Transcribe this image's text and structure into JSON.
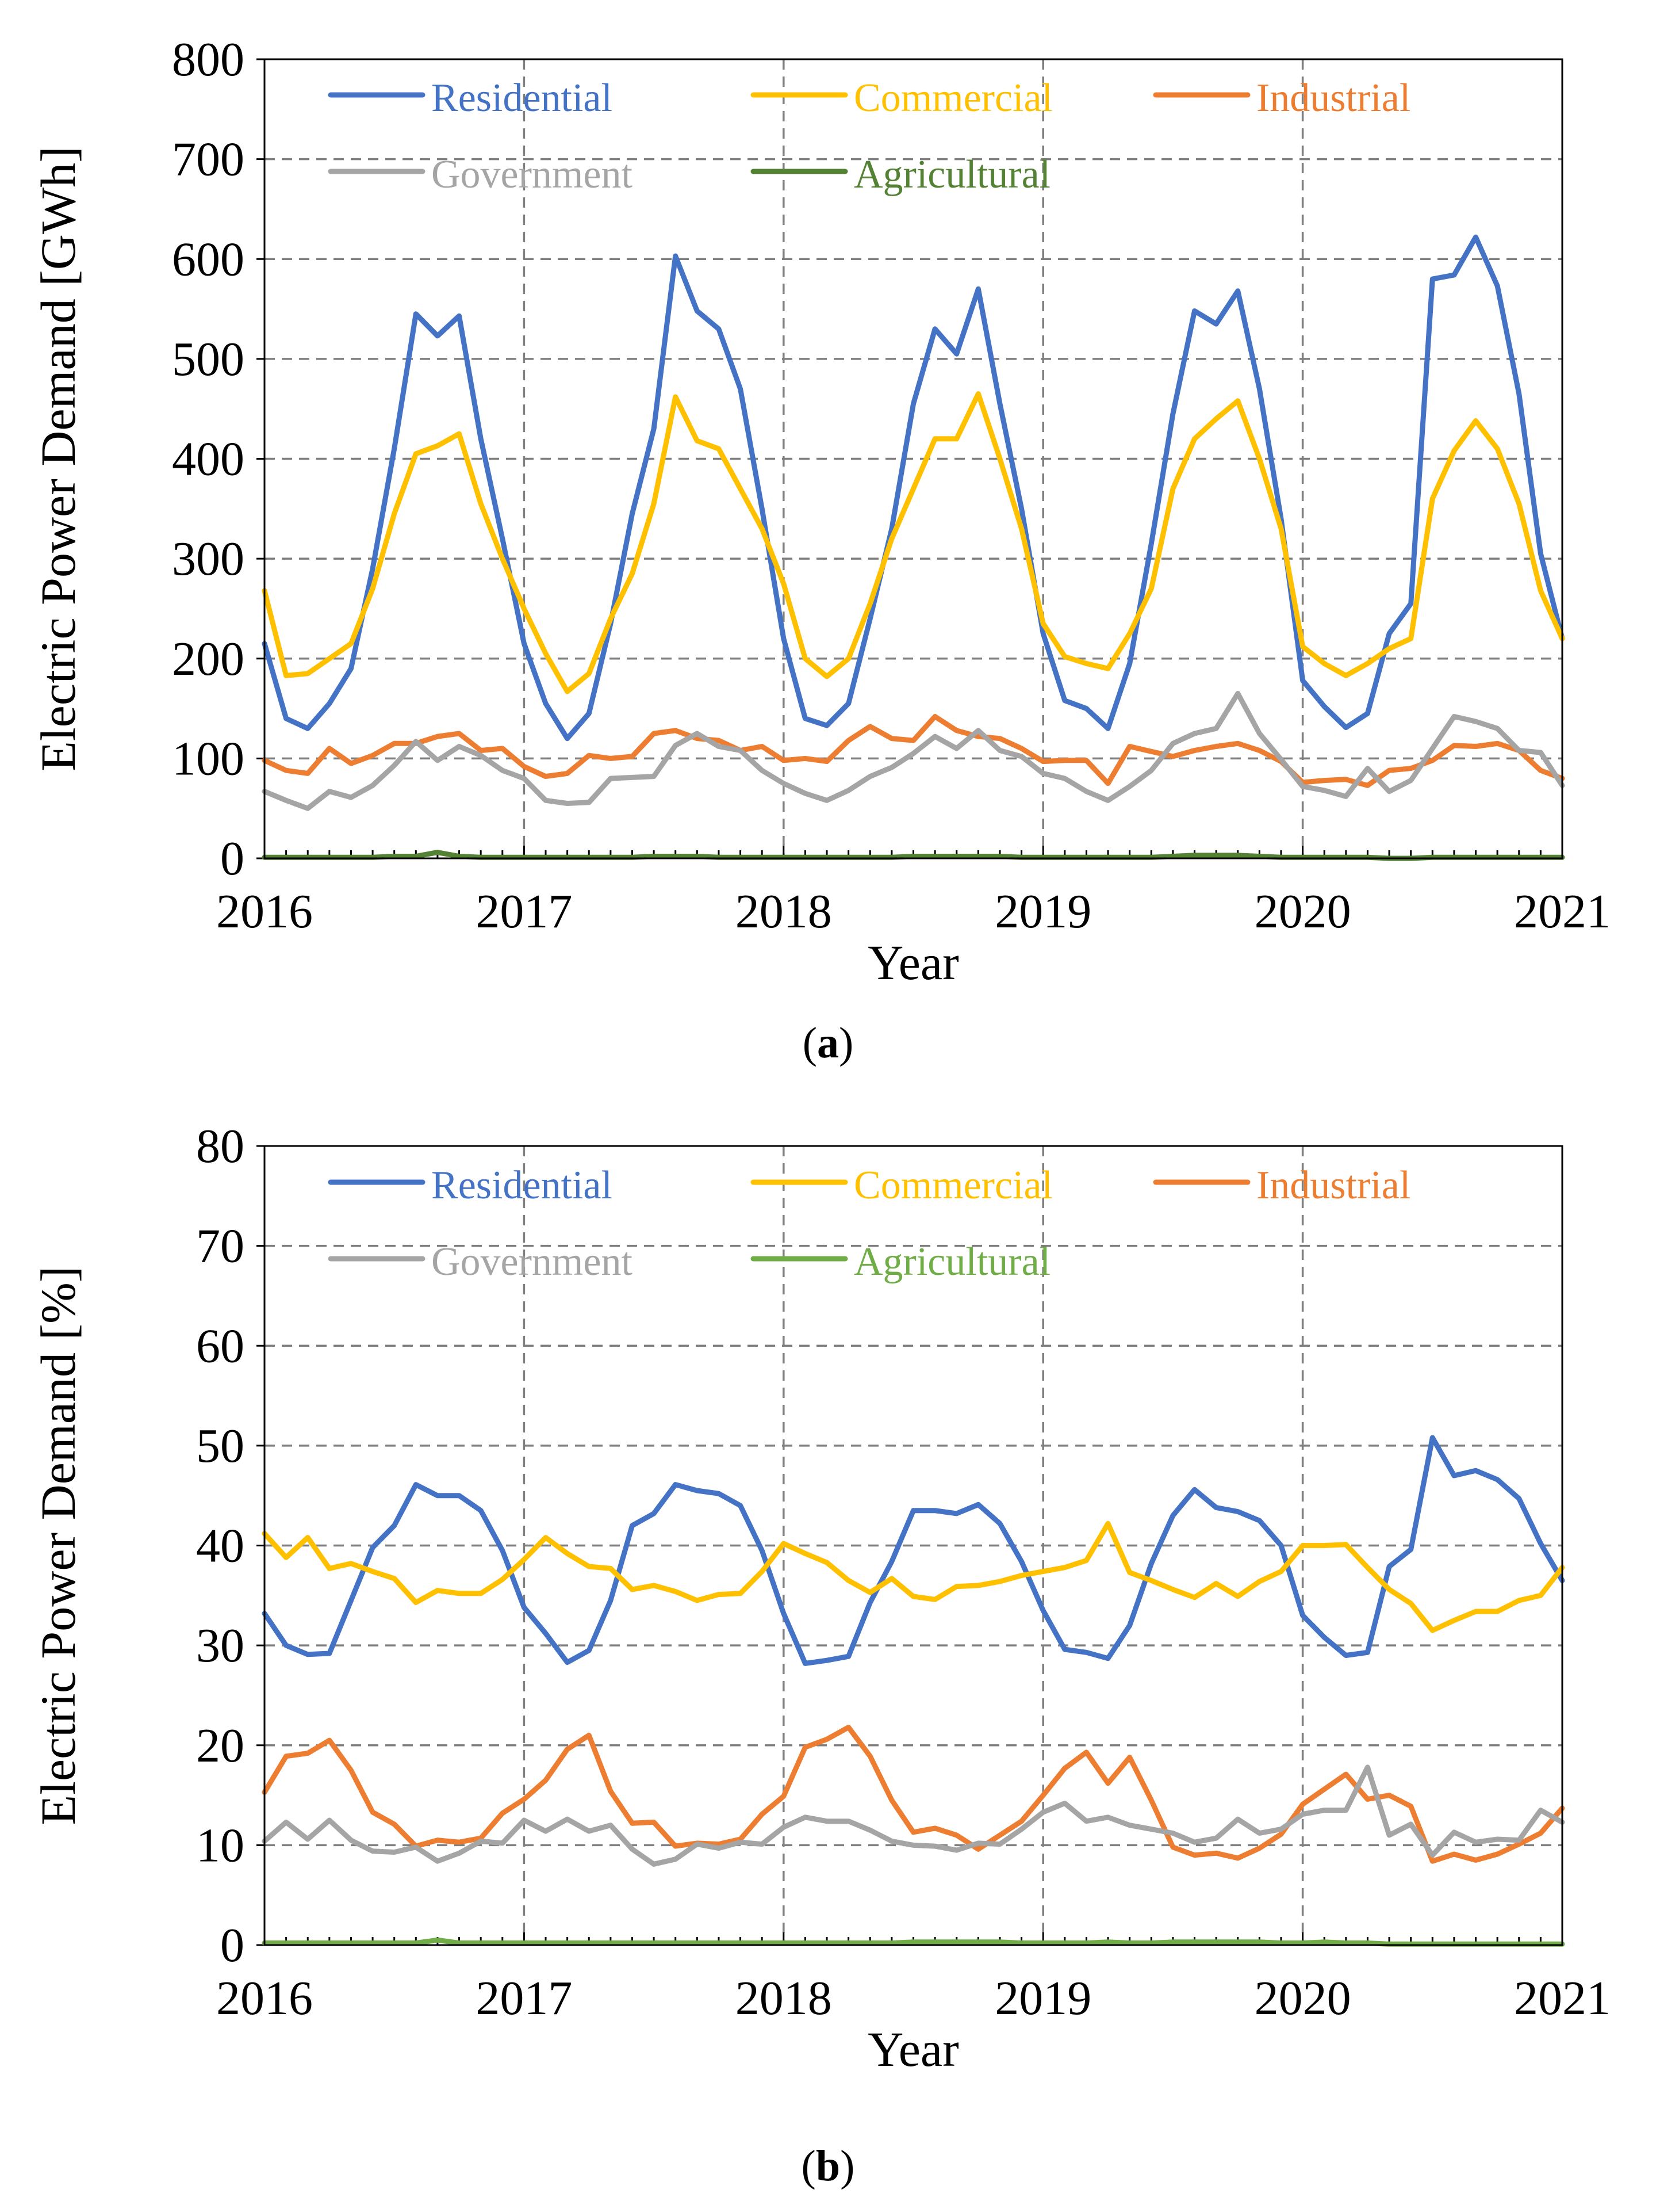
{
  "colors": {
    "residential": "#4472C4",
    "commercial": "#FFC000",
    "industrial": "#ED7D31",
    "government": "#A5A5A5",
    "agricultural_a": "#548235",
    "agricultural_b": "#70AD47",
    "grid": "#7F7F7F",
    "axis": "#000000"
  },
  "chart_data": [
    {
      "type": "line",
      "panel": "(a)",
      "panel_prefix": "(",
      "panel_letter": "a",
      "panel_suffix": ")",
      "xlabel": "Year",
      "ylabel": "Electric Power Demand [GWh]",
      "xlim": [
        2016,
        2021
      ],
      "ylim": [
        0,
        800
      ],
      "yticks": [
        0,
        100,
        200,
        300,
        400,
        500,
        600,
        700,
        800
      ],
      "xticks": [
        2016,
        2017,
        2018,
        2019,
        2020,
        2021
      ],
      "grid": true,
      "legend": [
        "Residential",
        "Commercial",
        "Industrial",
        "Government",
        "Agricultural"
      ],
      "series": [
        {
          "name": "Residential",
          "color_key": "residential",
          "values": [
            215,
            140,
            130,
            155,
            190,
            290,
            410,
            545,
            523,
            543,
            420,
            320,
            215,
            155,
            120,
            145,
            235,
            345,
            430,
            603,
            548,
            530,
            470,
            350,
            220,
            140,
            133,
            155,
            240,
            330,
            455,
            530,
            505,
            570,
            455,
            350,
            225,
            158,
            150,
            130,
            195,
            315,
            445,
            548,
            535,
            568,
            470,
            340,
            178,
            152,
            131,
            145,
            225,
            255,
            580,
            584,
            622,
            573,
            465,
            305,
            220
          ]
        },
        {
          "name": "Commercial",
          "color_key": "commercial",
          "values": [
            268,
            183,
            185,
            200,
            215,
            270,
            345,
            405,
            413,
            425,
            355,
            300,
            250,
            205,
            167,
            185,
            240,
            285,
            355,
            462,
            418,
            410,
            370,
            330,
            275,
            200,
            182,
            200,
            255,
            320,
            370,
            420,
            420,
            465,
            400,
            330,
            235,
            202,
            195,
            190,
            225,
            270,
            370,
            420,
            440,
            458,
            400,
            330,
            212,
            195,
            183,
            195,
            210,
            220,
            360,
            408,
            438,
            410,
            355,
            268,
            220
          ]
        },
        {
          "name": "Industrial",
          "color_key": "industrial",
          "values": [
            98,
            88,
            85,
            110,
            95,
            103,
            115,
            115,
            122,
            125,
            108,
            110,
            92,
            82,
            85,
            103,
            100,
            102,
            125,
            128,
            120,
            118,
            108,
            112,
            98,
            100,
            97,
            118,
            132,
            120,
            118,
            142,
            128,
            122,
            120,
            110,
            97,
            98,
            98,
            75,
            112,
            107,
            102,
            108,
            112,
            115,
            108,
            97,
            76,
            78,
            79,
            73,
            88,
            90,
            98,
            113,
            112,
            115,
            108,
            88,
            80
          ]
        },
        {
          "name": "Government",
          "color_key": "government",
          "values": [
            67,
            58,
            50,
            67,
            61,
            73,
            93,
            117,
            98,
            112,
            103,
            88,
            80,
            58,
            55,
            56,
            80,
            81,
            82,
            113,
            125,
            112,
            108,
            88,
            75,
            65,
            58,
            68,
            82,
            91,
            105,
            122,
            110,
            128,
            108,
            102,
            85,
            80,
            67,
            58,
            72,
            88,
            115,
            125,
            130,
            165,
            125,
            99,
            72,
            68,
            62,
            90,
            67,
            78,
            110,
            142,
            137,
            130,
            108,
            106,
            73
          ]
        },
        {
          "name": "Agricultural",
          "color_key": "agricultural_a",
          "values": [
            1,
            1,
            1,
            1,
            1,
            1,
            2,
            2,
            6,
            2,
            1,
            1,
            1,
            1,
            1,
            1,
            1,
            1,
            2,
            2,
            2,
            1,
            1,
            1,
            1,
            1,
            1,
            1,
            1,
            1,
            2,
            2,
            2,
            2,
            2,
            1,
            1,
            1,
            1,
            1,
            1,
            1,
            2,
            3,
            3,
            3,
            2,
            1,
            1,
            1,
            1,
            1,
            0,
            0,
            1,
            1,
            1,
            1,
            1,
            1,
            1
          ]
        }
      ]
    },
    {
      "type": "line",
      "panel": "(b)",
      "panel_prefix": "(",
      "panel_letter": "b",
      "panel_suffix": ")",
      "xlabel": "Year",
      "ylabel": "Electric Power Demand [%]",
      "xlim": [
        2016,
        2021
      ],
      "ylim": [
        0,
        80
      ],
      "yticks": [
        0,
        10,
        20,
        30,
        40,
        50,
        60,
        70,
        80
      ],
      "xticks": [
        2016,
        2017,
        2018,
        2019,
        2020,
        2021
      ],
      "grid": true,
      "legend": [
        "Residential",
        "Commercial",
        "Industrial",
        "Government",
        "Agricultural"
      ],
      "series": [
        {
          "name": "Residential",
          "color_key": "residential",
          "values": [
            33.2,
            30.0,
            29.1,
            29.2,
            34.5,
            39.8,
            42.0,
            46.1,
            45.0,
            45.0,
            43.5,
            39.5,
            33.8,
            31.2,
            28.3,
            29.5,
            34.5,
            42.0,
            43.2,
            46.1,
            45.5,
            45.2,
            44.0,
            39.5,
            33.2,
            28.2,
            28.5,
            28.9,
            34.3,
            38.4,
            43.5,
            43.5,
            43.2,
            44.1,
            42.2,
            38.4,
            33.5,
            29.6,
            29.3,
            28.7,
            32.0,
            38.2,
            43.0,
            45.6,
            43.8,
            43.4,
            42.5,
            40.0,
            33.0,
            30.8,
            29.0,
            29.3,
            37.9,
            39.6,
            50.8,
            47.0,
            47.5,
            46.6,
            44.7,
            40.2,
            36.5
          ]
        },
        {
          "name": "Commercial",
          "color_key": "commercial",
          "values": [
            41.2,
            38.8,
            40.8,
            37.7,
            38.2,
            37.4,
            36.7,
            34.3,
            35.5,
            35.2,
            35.2,
            36.6,
            38.6,
            40.8,
            39.2,
            37.9,
            37.7,
            35.6,
            36.0,
            35.4,
            34.5,
            35.1,
            35.2,
            37.4,
            40.2,
            39.2,
            38.3,
            36.5,
            35.3,
            36.7,
            34.9,
            34.6,
            35.9,
            36.0,
            36.4,
            37.0,
            37.4,
            37.8,
            38.5,
            42.2,
            37.3,
            36.5,
            35.6,
            34.8,
            36.2,
            34.9,
            36.4,
            37.4,
            40.0,
            40.0,
            40.1,
            37.8,
            35.6,
            34.2,
            31.5,
            32.5,
            33.4,
            33.4,
            34.5,
            35.0,
            37.8
          ]
        },
        {
          "name": "Industrial",
          "color_key": "industrial",
          "values": [
            15.3,
            18.9,
            19.2,
            20.5,
            17.5,
            13.3,
            12.1,
            9.9,
            10.5,
            10.3,
            10.7,
            13.2,
            14.6,
            16.5,
            19.6,
            21.0,
            15.4,
            12.2,
            12.3,
            9.9,
            10.2,
            10.1,
            10.6,
            13.1,
            14.9,
            19.8,
            20.6,
            21.8,
            18.9,
            14.5,
            11.3,
            11.7,
            11.0,
            9.6,
            11.0,
            12.4,
            15.0,
            17.7,
            19.3,
            16.2,
            18.8,
            14.5,
            9.8,
            9.0,
            9.2,
            8.7,
            9.7,
            11.1,
            14.1,
            15.6,
            17.1,
            14.6,
            15.0,
            13.9,
            8.4,
            9.1,
            8.5,
            9.1,
            10.1,
            11.2,
            13.7
          ]
        },
        {
          "name": "Government",
          "color_key": "government",
          "values": [
            10.4,
            12.3,
            10.6,
            12.5,
            10.5,
            9.4,
            9.3,
            9.8,
            8.4,
            9.2,
            10.4,
            10.2,
            12.5,
            11.4,
            12.6,
            11.4,
            12.0,
            9.6,
            8.1,
            8.6,
            10.1,
            9.7,
            10.3,
            10.1,
            11.8,
            12.8,
            12.4,
            12.4,
            11.5,
            10.4,
            10.0,
            9.9,
            9.5,
            10.2,
            10.1,
            11.6,
            13.3,
            14.2,
            12.4,
            12.8,
            12.0,
            11.6,
            11.2,
            10.3,
            10.7,
            12.6,
            11.2,
            11.6,
            13.1,
            13.5,
            13.5,
            17.8,
            11.0,
            12.1,
            9.0,
            11.3,
            10.3,
            10.6,
            10.5,
            13.5,
            12.3
          ]
        },
        {
          "name": "Agricultural",
          "color_key": "agricultural_b",
          "values": [
            0.2,
            0.2,
            0.2,
            0.2,
            0.2,
            0.2,
            0.2,
            0.2,
            0.5,
            0.2,
            0.2,
            0.2,
            0.2,
            0.2,
            0.2,
            0.2,
            0.2,
            0.2,
            0.2,
            0.2,
            0.2,
            0.2,
            0.2,
            0.2,
            0.2,
            0.2,
            0.2,
            0.2,
            0.2,
            0.2,
            0.3,
            0.3,
            0.3,
            0.3,
            0.3,
            0.2,
            0.2,
            0.2,
            0.2,
            0.3,
            0.2,
            0.2,
            0.3,
            0.3,
            0.3,
            0.3,
            0.3,
            0.2,
            0.2,
            0.3,
            0.2,
            0.2,
            0.1,
            0.1,
            0.1,
            0.1,
            0.1,
            0.1,
            0.1,
            0.1,
            0.1
          ]
        }
      ]
    }
  ]
}
